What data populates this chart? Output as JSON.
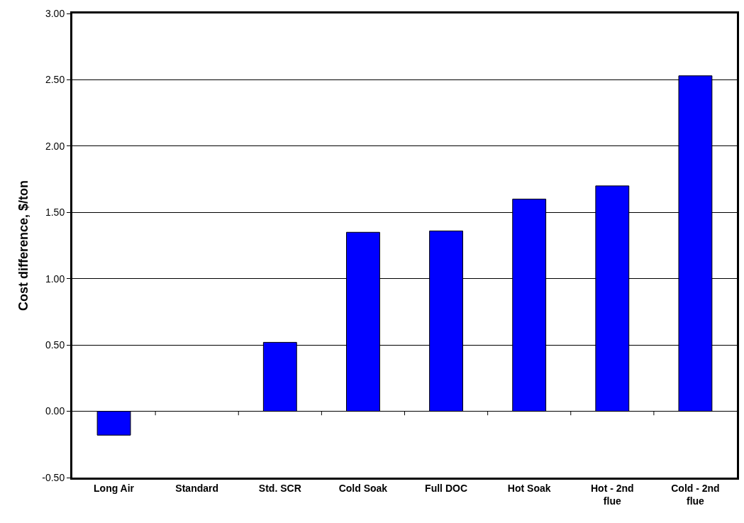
{
  "chart_data": {
    "type": "bar",
    "ylabel": "Cost difference, $/ton",
    "categories": [
      "Long Air",
      "Standard",
      "Std. SCR",
      "Cold Soak",
      "Full DOC",
      "Hot Soak",
      "Hot - 2nd flue",
      "Cold - 2nd flue"
    ],
    "values": [
      -0.18,
      0,
      0.52,
      1.35,
      1.36,
      1.6,
      1.7,
      2.53
    ],
    "color": "#0000ff",
    "ylim": [
      -0.5,
      3
    ],
    "yticks": [
      {
        "value": -0.5,
        "label": "-0.50"
      },
      {
        "value": 0,
        "label": "0.00"
      },
      {
        "value": 0.5,
        "label": "0.50"
      },
      {
        "value": 1,
        "label": "1.00"
      },
      {
        "value": 1.5,
        "label": "1.50"
      },
      {
        "value": 2,
        "label": "2.00"
      },
      {
        "value": 2.5,
        "label": "2.50"
      },
      {
        "value": 3,
        "label": "3.00"
      }
    ],
    "grid": "y"
  }
}
